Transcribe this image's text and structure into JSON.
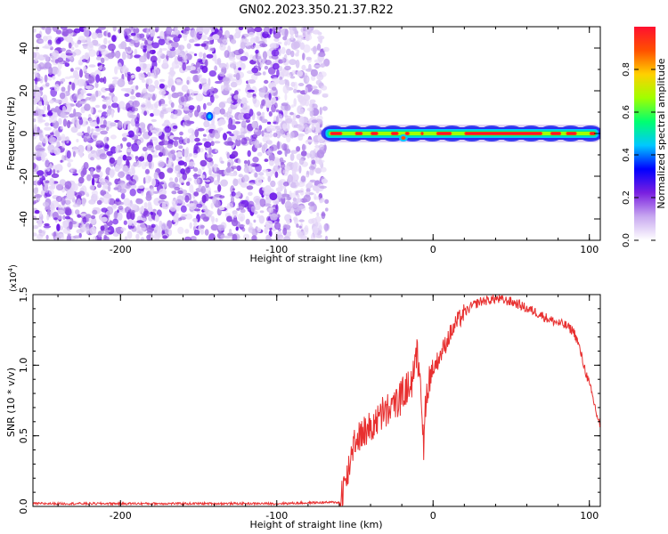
{
  "figure": {
    "title": "GN02.2023.350.21.37.R22"
  },
  "chart_data": [
    {
      "type": "heatmap",
      "xlabel": "Height of straight line (km)",
      "ylabel": "Frequency (Hz)",
      "xlim": [
        -256,
        107
      ],
      "ylim": [
        -50,
        50
      ],
      "xticks": [
        -200,
        -100,
        0,
        100
      ],
      "yticks": [
        -40,
        -20,
        0,
        20,
        40
      ],
      "noise_region_x": [
        -256,
        -68
      ],
      "signal_region_x": [
        -70,
        107
      ],
      "signal_center_hz": 0,
      "colorbar": {
        "label": "Normalized spectral amplitude",
        "range": [
          0,
          1
        ],
        "ticks": [
          "0.0",
          "0.2",
          "0.4",
          "0.6",
          "0.8"
        ],
        "colors": [
          "#ffffff",
          "#c8a8f0",
          "#7a1fe0",
          "#0000ff",
          "#00c8ff",
          "#00ff70",
          "#a0ff00",
          "#ffd000",
          "#ff5000",
          "#ff1030"
        ]
      }
    },
    {
      "type": "line",
      "xlabel": "Height of straight line (km)",
      "ylabel": "SNR (10 * v/v)",
      "yscale_label": "(x10",
      "yscale_exp": "4",
      "yscale_close": ")",
      "xlim": [
        -256,
        107
      ],
      "ylim": [
        0,
        1.5
      ],
      "xticks": [
        -200,
        -100,
        0,
        100
      ],
      "yticks": [
        "0.0",
        "0.5",
        "1.0",
        "1.5"
      ],
      "color": "#e83030",
      "series": [
        {
          "x": [
            -256,
            -200,
            -150,
            -100,
            -60,
            -58,
            -55,
            -52,
            -50,
            -45,
            -40,
            -35,
            -30,
            -25,
            -20,
            -15,
            -12,
            -10,
            -8,
            -6,
            -5,
            -3,
            0,
            5,
            10,
            15,
            20,
            25,
            30,
            35,
            40,
            45,
            50,
            55,
            60,
            65,
            70,
            75,
            80,
            85,
            90,
            93,
            96,
            99,
            102,
            105,
            107
          ],
          "y": [
            0.02,
            0.02,
            0.02,
            0.02,
            0.03,
            0.12,
            0.2,
            0.4,
            0.48,
            0.52,
            0.56,
            0.62,
            0.67,
            0.72,
            0.78,
            0.85,
            0.98,
            1.08,
            0.95,
            0.35,
            0.72,
            0.88,
            0.97,
            1.08,
            1.2,
            1.3,
            1.37,
            1.42,
            1.45,
            1.46,
            1.47,
            1.46,
            1.45,
            1.43,
            1.4,
            1.38,
            1.35,
            1.32,
            1.3,
            1.28,
            1.24,
            1.15,
            1.02,
            0.9,
            0.78,
            0.64,
            0.57
          ]
        }
      ]
    }
  ]
}
